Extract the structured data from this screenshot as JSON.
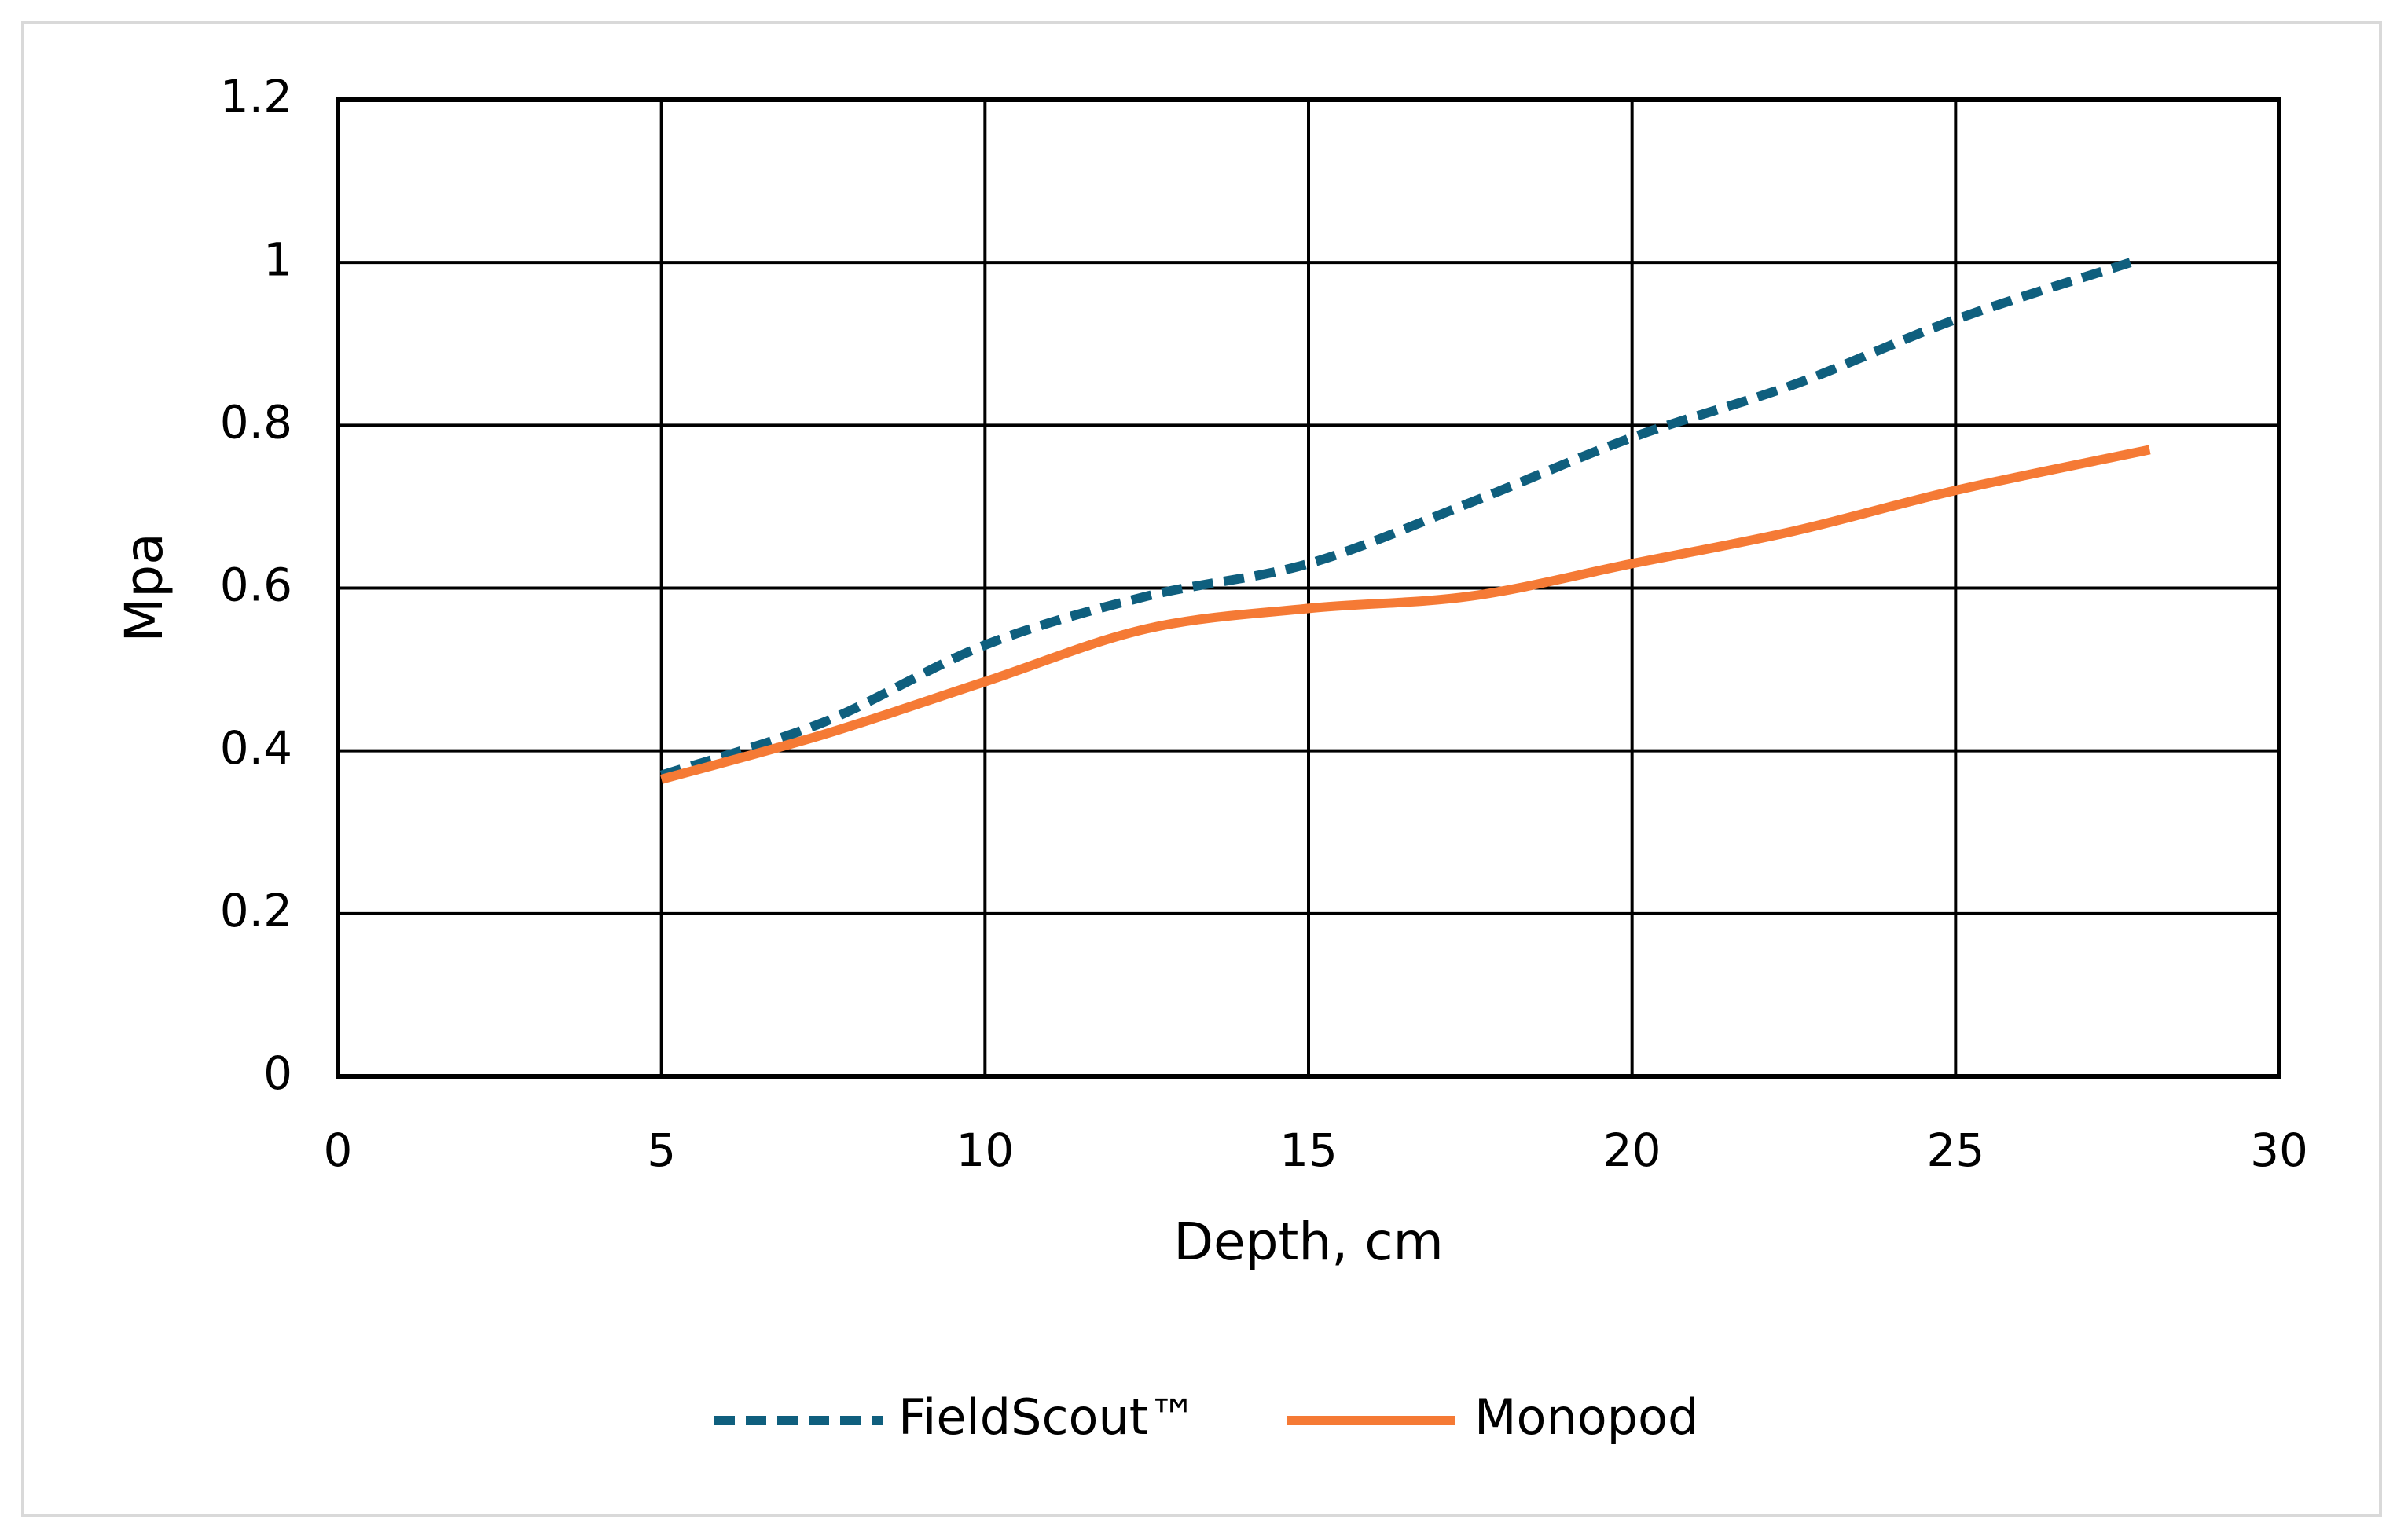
{
  "chart_data": {
    "type": "line",
    "x_label": "Depth, cm",
    "y_label": "Mpa",
    "xlim": [
      0,
      30
    ],
    "xticks": [
      0,
      5,
      10,
      15,
      20,
      25,
      30
    ],
    "ylim": [
      0,
      1.2
    ],
    "yticks": [
      0,
      0.2,
      0.4,
      0.6,
      0.8,
      1,
      1.2
    ],
    "grid": true,
    "legend": "bottom",
    "series": [
      {
        "name": "FieldScout™",
        "color": "#0f5f7e",
        "dash": true,
        "x": [
          5,
          7.5,
          10,
          12.5,
          15,
          17.5,
          20,
          22.5,
          25,
          27.7
        ],
        "values": [
          0.37,
          0.435,
          0.53,
          0.59,
          0.63,
          0.705,
          0.785,
          0.85,
          0.93,
          1.0
        ]
      },
      {
        "name": "Monopod",
        "color": "#f57a35",
        "dash": false,
        "x": [
          5,
          7.5,
          10,
          12.5,
          15,
          17.5,
          20,
          22.5,
          25,
          28
        ],
        "values": [
          0.365,
          0.42,
          0.485,
          0.55,
          0.575,
          0.59,
          0.63,
          0.67,
          0.72,
          0.77
        ]
      }
    ]
  }
}
